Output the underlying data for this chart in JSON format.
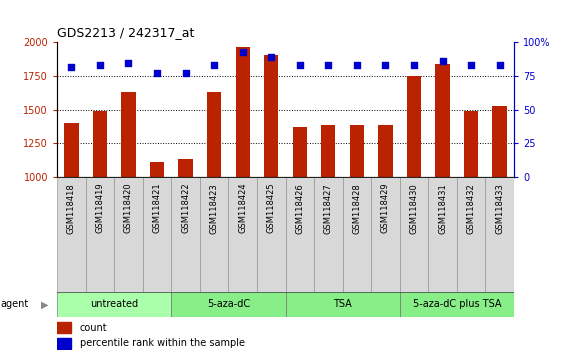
{
  "title": "GDS2213 / 242317_at",
  "categories": [
    "GSM118418",
    "GSM118419",
    "GSM118420",
    "GSM118421",
    "GSM118422",
    "GSM118423",
    "GSM118424",
    "GSM118425",
    "GSM118426",
    "GSM118427",
    "GSM118428",
    "GSM118429",
    "GSM118430",
    "GSM118431",
    "GSM118432",
    "GSM118433"
  ],
  "counts": [
    1400,
    1490,
    1630,
    1115,
    1135,
    1630,
    1970,
    1910,
    1375,
    1390,
    1390,
    1385,
    1750,
    1840,
    1490,
    1530
  ],
  "percentiles": [
    82,
    83,
    85,
    77,
    77,
    83,
    93,
    89,
    83,
    83,
    83,
    83,
    83,
    86,
    83,
    83
  ],
  "bar_color": "#bb2200",
  "dot_color": "#0000cc",
  "groups": [
    {
      "label": "untreated",
      "start": 0,
      "end": 4,
      "color": "#aaffaa"
    },
    {
      "label": "5-aza-dC",
      "start": 4,
      "end": 8,
      "color": "#88ee88"
    },
    {
      "label": "TSA",
      "start": 8,
      "end": 12,
      "color": "#88ee88"
    },
    {
      "label": "5-aza-dC plus TSA",
      "start": 12,
      "end": 16,
      "color": "#88ee88"
    }
  ],
  "ylim_left": [
    1000,
    2000
  ],
  "ylim_right": [
    0,
    100
  ],
  "yticks_left": [
    1000,
    1250,
    1500,
    1750,
    2000
  ],
  "yticks_right": [
    0,
    25,
    50,
    75,
    100
  ],
  "legend_count_label": "count",
  "legend_pct_label": "percentile rank within the sample",
  "agent_label": "agent",
  "background_color": "#ffffff",
  "grid_dotted_at": [
    1250,
    1500,
    1750
  ],
  "bar_width": 0.5
}
